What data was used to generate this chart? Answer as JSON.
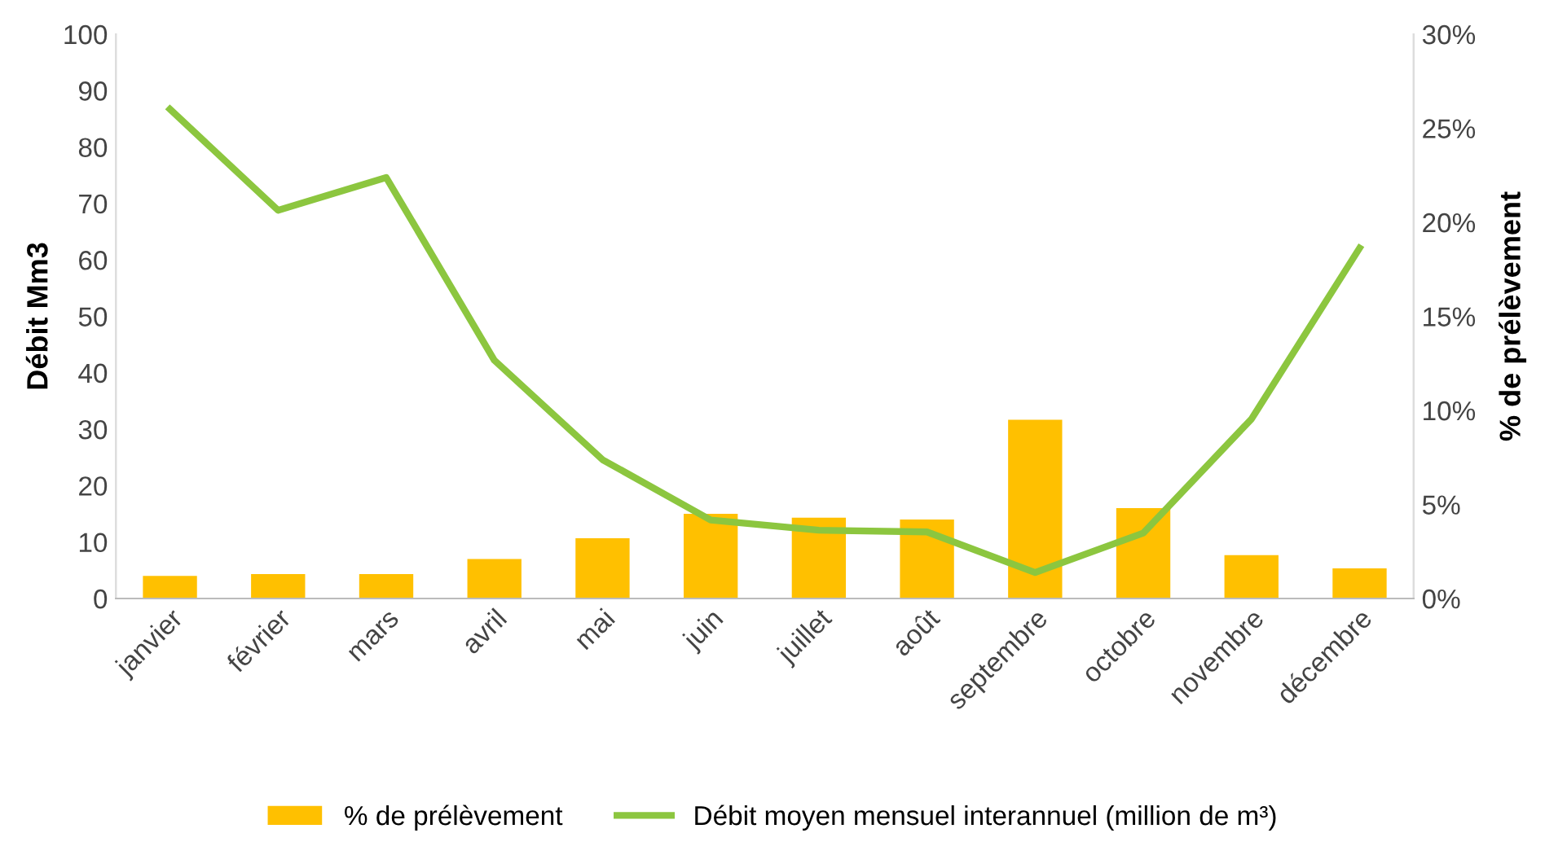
{
  "chart_data": {
    "type": "bar",
    "ylabel": "Débit Mm3",
    "y2label": "% de prélèvement",
    "categories": [
      "janvier",
      "février",
      "mars",
      "avril",
      "mai",
      "juin",
      "juillet",
      "août",
      "septembre",
      "octobre",
      "novembre",
      "décembre"
    ],
    "series": [
      {
        "name": "% de prélèvement",
        "axis": "y2",
        "color": "#ffc000",
        "values": [
          1.2,
          1.3,
          1.3,
          2.1,
          3.2,
          4.5,
          4.3,
          4.2,
          9.5,
          4.8,
          2.3,
          1.6
        ]
      },
      {
        "name": "Débit moyen mensuel interannuel (million de m³)",
        "type": "line",
        "color": "#8cc63f",
        "values": [
          86.7,
          68.8,
          74.6,
          42.2,
          24.6,
          13.9,
          12.1,
          11.8,
          4.6,
          11.6,
          31.8,
          62.1
        ]
      }
    ],
    "ylim": [
      0,
      100
    ],
    "yticks": [
      0,
      10,
      20,
      30,
      40,
      50,
      60,
      70,
      80,
      90,
      100
    ],
    "y2lim": [
      0,
      30
    ],
    "y2ticks": [
      {
        "value": 0,
        "label": "0%"
      },
      {
        "value": 5,
        "label": "5%"
      },
      {
        "value": 10,
        "label": "10%"
      },
      {
        "value": 15,
        "label": "15%"
      },
      {
        "value": 20,
        "label": "20%"
      },
      {
        "value": 25,
        "label": "25%"
      },
      {
        "value": 30,
        "label": "30%"
      }
    ],
    "grid": false,
    "legend": "bottom",
    "marker": "none",
    "line_style": "solid"
  }
}
